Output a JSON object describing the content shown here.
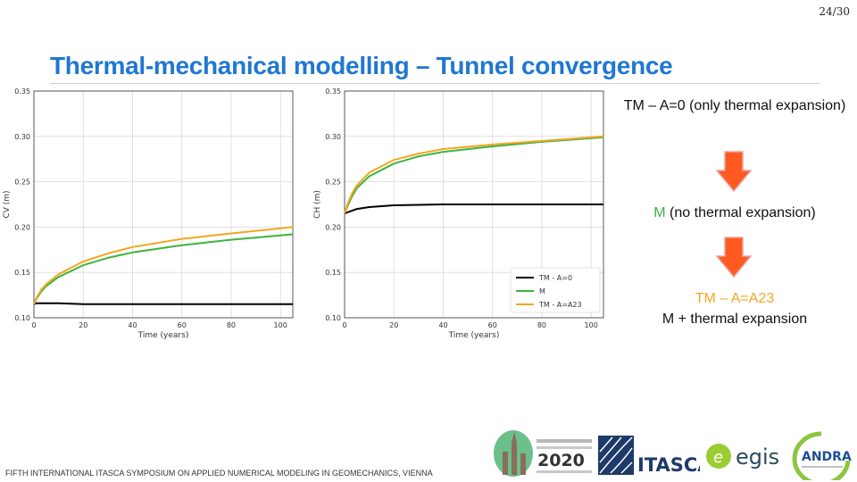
{
  "page_number": "24/30",
  "title": "Thermal-mechanical modelling – Tunnel convergence",
  "flow": {
    "step1_bold": "TM – A=0",
    "step1_rest": " (only thermal expansion)",
    "step2_bold": "M",
    "step2_rest": " (no thermal expansion)",
    "step3_line1": "TM – A=A23",
    "step3_line2": "M + thermal expansion",
    "colors": {
      "m": "#3cb43c",
      "a23": "#f5a623",
      "arrow": "#ff5a1f"
    }
  },
  "footer": "FIFTH INTERNATIONAL ITASCA SYMPOSIUM ON APPLIED NUMERICAL MODELING IN GEOMECHANICS, VIENNA",
  "logos": {
    "symposium_year": "2020",
    "itasca": "ITASCA",
    "egis": "egis",
    "andra": "ANDRA"
  },
  "chart_data": [
    {
      "type": "line",
      "xlabel": "Time (years)",
      "ylabel": "CV (m)",
      "xlim": [
        0,
        105
      ],
      "ylim": [
        0.1,
        0.35
      ],
      "xticks": [
        "0",
        "20",
        "40",
        "60",
        "80",
        "100"
      ],
      "yticks": [
        "0.10",
        "0.15",
        "0.20",
        "0.25",
        "0.30",
        "0.35"
      ],
      "grid": true,
      "legend": "none",
      "series": [
        {
          "name": "TM - A=0",
          "color": "#000000",
          "x": [
            0,
            1,
            3,
            5,
            10,
            20,
            40,
            60,
            80,
            105
          ],
          "values": [
            0.115,
            0.116,
            0.116,
            0.116,
            0.116,
            0.115,
            0.115,
            0.115,
            0.115,
            0.115
          ]
        },
        {
          "name": "M",
          "color": "#3cb43c",
          "x": [
            0,
            1,
            3,
            5,
            10,
            20,
            30,
            40,
            60,
            80,
            105
          ],
          "values": [
            0.115,
            0.121,
            0.129,
            0.135,
            0.145,
            0.158,
            0.166,
            0.172,
            0.18,
            0.186,
            0.192
          ]
        },
        {
          "name": "TM - A=A23",
          "color": "#f5a623",
          "x": [
            0,
            1,
            3,
            5,
            10,
            20,
            30,
            40,
            60,
            80,
            105
          ],
          "values": [
            0.115,
            0.122,
            0.131,
            0.137,
            0.148,
            0.162,
            0.171,
            0.178,
            0.187,
            0.193,
            0.2
          ]
        }
      ]
    },
    {
      "type": "line",
      "xlabel": "Time (years)",
      "ylabel": "CH (m)",
      "xlim": [
        0,
        105
      ],
      "ylim": [
        0.1,
        0.35
      ],
      "xticks": [
        "0",
        "20",
        "40",
        "60",
        "80",
        "100"
      ],
      "yticks": [
        "0.10",
        "0.15",
        "0.20",
        "0.25",
        "0.30",
        "0.35"
      ],
      "grid": true,
      "legend": "bottom-right",
      "series": [
        {
          "name": "TM - A=0",
          "color": "#000000",
          "x": [
            0,
            1,
            3,
            5,
            10,
            20,
            40,
            60,
            80,
            105
          ],
          "values": [
            0.215,
            0.216,
            0.218,
            0.22,
            0.222,
            0.224,
            0.225,
            0.225,
            0.225,
            0.225
          ]
        },
        {
          "name": "M",
          "color": "#3cb43c",
          "x": [
            0,
            1,
            3,
            5,
            10,
            20,
            30,
            40,
            60,
            80,
            105
          ],
          "values": [
            0.215,
            0.222,
            0.234,
            0.243,
            0.256,
            0.27,
            0.278,
            0.283,
            0.289,
            0.294,
            0.299
          ]
        },
        {
          "name": "TM - A=A23",
          "color": "#f5a623",
          "x": [
            0,
            1,
            3,
            5,
            10,
            20,
            30,
            40,
            60,
            80,
            105
          ],
          "values": [
            0.215,
            0.224,
            0.237,
            0.246,
            0.26,
            0.274,
            0.281,
            0.286,
            0.291,
            0.295,
            0.3
          ]
        }
      ]
    }
  ]
}
